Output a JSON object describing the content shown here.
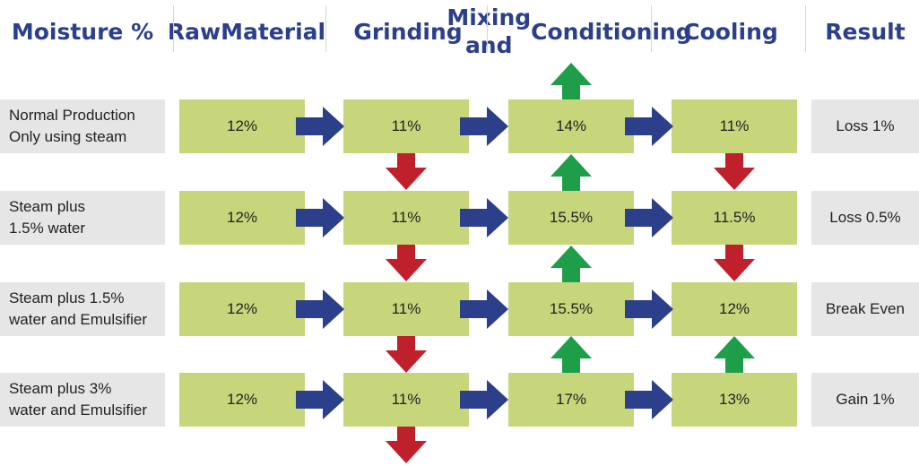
{
  "headers": [
    {
      "lines": [
        "Moisture %"
      ]
    },
    {
      "lines": [
        "Raw",
        "Material"
      ]
    },
    {
      "lines": [
        "Grinding"
      ]
    },
    {
      "lines": [
        "Mixing and",
        "Conditioning"
      ]
    },
    {
      "lines": [
        "Cooling"
      ]
    },
    {
      "lines": [
        "Result"
      ]
    }
  ],
  "rows": [
    {
      "label": [
        "Normal Production",
        "Only using steam"
      ],
      "values": [
        "12%",
        "11%",
        "14%",
        "11%"
      ],
      "result": "Loss 1%"
    },
    {
      "label": [
        "Steam plus",
        "1.5% water"
      ],
      "values": [
        "12%",
        "11%",
        "15.5%",
        "11.5%"
      ],
      "result": "Loss 0.5%"
    },
    {
      "label": [
        "Steam plus 1.5%",
        "water and Emulsifier"
      ],
      "values": [
        "12%",
        "11%",
        "15.5%",
        "12%"
      ],
      "result": "Break Even"
    },
    {
      "label": [
        "Steam plus 3%",
        "water and Emulsifier"
      ],
      "values": [
        "12%",
        "11%",
        "17%",
        "13%"
      ],
      "result": "Gain 1%"
    }
  ],
  "vertical_arrows": [
    {
      "stage": "grinding",
      "after_row": 0,
      "direction": "down"
    },
    {
      "stage": "grinding",
      "after_row": 1,
      "direction": "down"
    },
    {
      "stage": "grinding",
      "after_row": 2,
      "direction": "down"
    },
    {
      "stage": "grinding",
      "after_row": 3,
      "direction": "down"
    },
    {
      "stage": "mixing",
      "before_row": 0,
      "direction": "up"
    },
    {
      "stage": "mixing",
      "before_row": 1,
      "direction": "up"
    },
    {
      "stage": "mixing",
      "before_row": 2,
      "direction": "up"
    },
    {
      "stage": "mixing",
      "before_row": 3,
      "direction": "up"
    },
    {
      "stage": "cooling",
      "after_row": 0,
      "direction": "down"
    },
    {
      "stage": "cooling",
      "after_row": 1,
      "direction": "down"
    },
    {
      "stage": "cooling",
      "before_row": 3,
      "direction": "up"
    }
  ],
  "colors": {
    "header_text": "#2b3f8a",
    "stage_box": "#c7d67a",
    "label_box": "#e6e6e6",
    "flow_arrow": "#2b3f8a",
    "down_arrow": "#c0202b",
    "up_arrow": "#1e9e48"
  }
}
